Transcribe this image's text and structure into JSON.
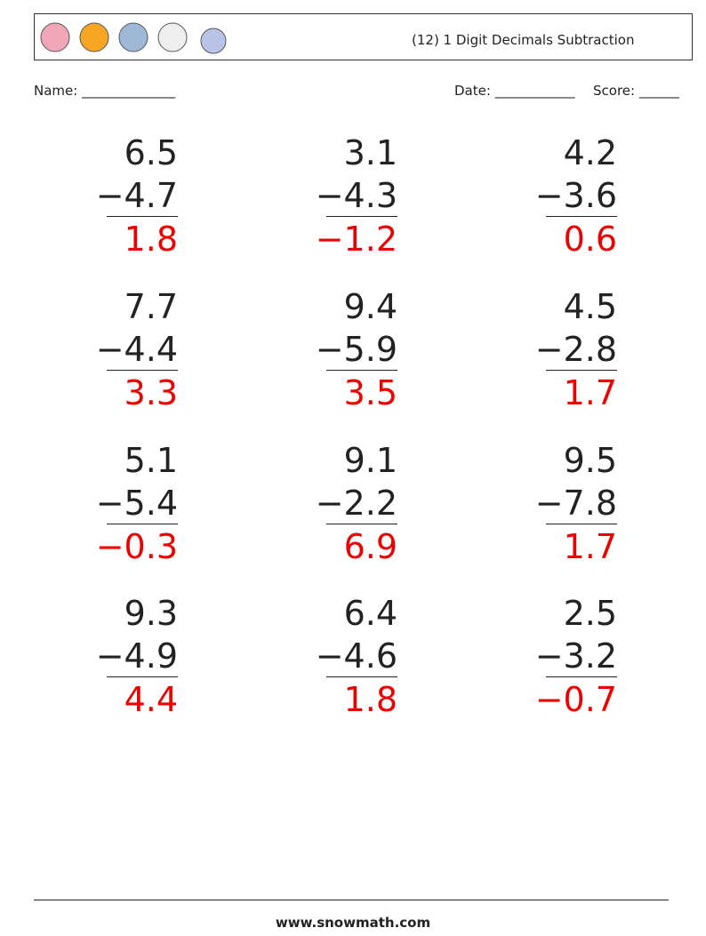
{
  "header": {
    "title": "(12) 1 Digit Decimals Subtraction"
  },
  "fields": {
    "name": "Name: ______________",
    "date": "Date: ____________",
    "score": "Score: ______"
  },
  "problems": [
    {
      "top": "6.5",
      "bottom": "−4.7",
      "answer": "1.8"
    },
    {
      "top": "3.1",
      "bottom": "−4.3",
      "answer": "−1.2"
    },
    {
      "top": "4.2",
      "bottom": "−3.6",
      "answer": "0.6"
    },
    {
      "top": "7.7",
      "bottom": "−4.4",
      "answer": "3.3"
    },
    {
      "top": "9.4",
      "bottom": "−5.9",
      "answer": "3.5"
    },
    {
      "top": "4.5",
      "bottom": "−2.8",
      "answer": "1.7"
    },
    {
      "top": "5.1",
      "bottom": "−5.4",
      "answer": "−0.3"
    },
    {
      "top": "9.1",
      "bottom": "−2.2",
      "answer": "6.9"
    },
    {
      "top": "9.5",
      "bottom": "−7.8",
      "answer": "1.7"
    },
    {
      "top": "9.3",
      "bottom": "−4.9",
      "answer": "4.4"
    },
    {
      "top": "6.4",
      "bottom": "−4.6",
      "answer": "1.8"
    },
    {
      "top": "2.5",
      "bottom": "−3.2",
      "answer": "−0.7"
    }
  ],
  "footer": {
    "site": "www.snowmath.com"
  }
}
